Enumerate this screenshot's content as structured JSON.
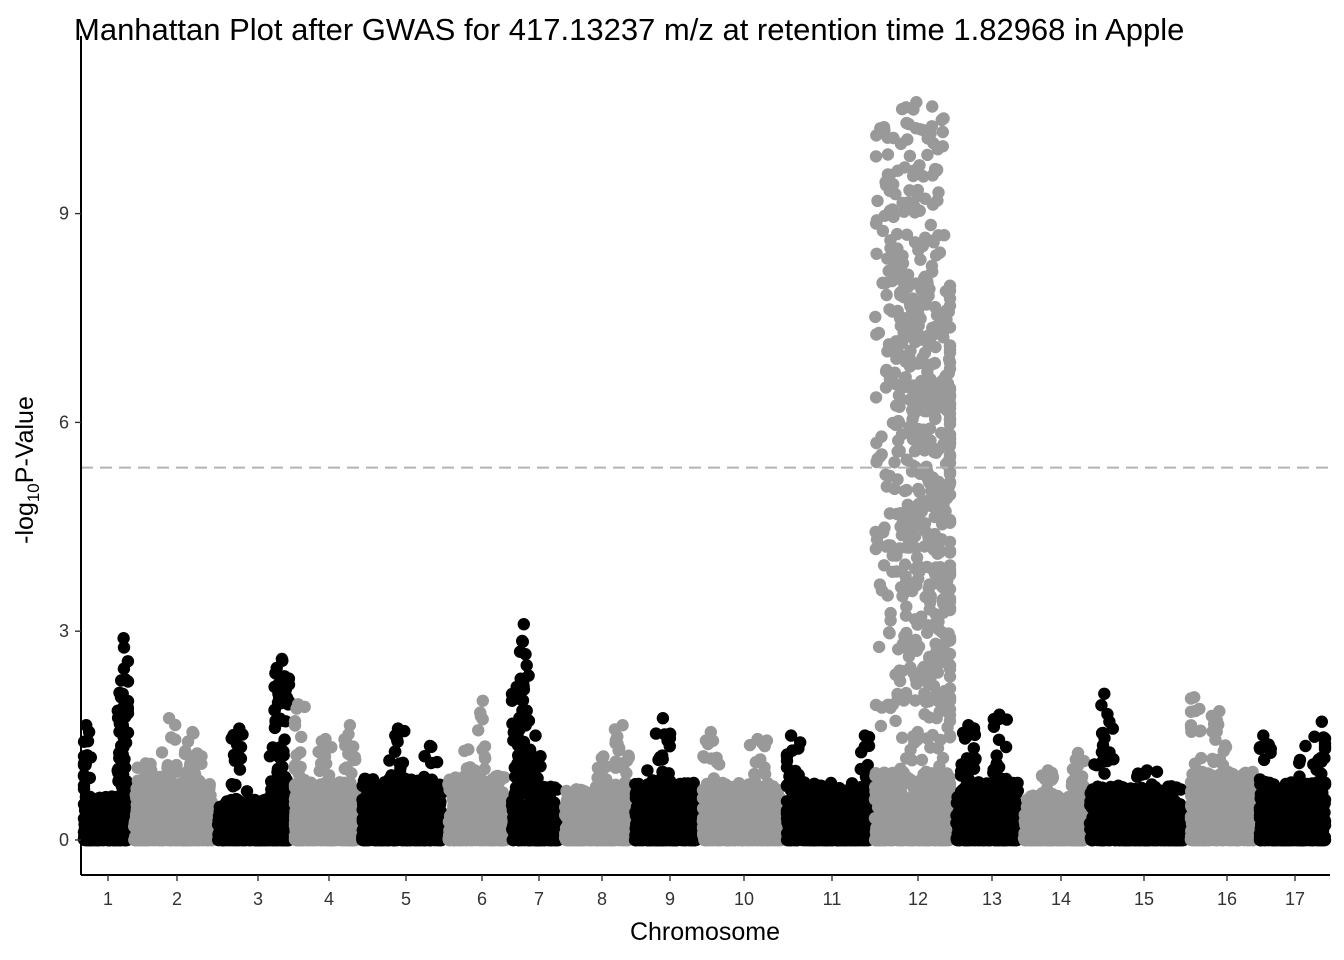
{
  "chart_data": {
    "type": "scatter",
    "subtype": "manhattan",
    "title": "Manhattan Plot after GWAS for 417.13237 m/z at retention time 1.82968 in Apple",
    "xlabel": "Chromosome",
    "ylabel": {
      "prefix": "-log",
      "subscript": "10",
      "suffix": "P-Value"
    },
    "ylim": [
      -0.45,
      10.95
    ],
    "y_ticks": [
      "0",
      "3",
      "6",
      "9"
    ],
    "significance_threshold": 5.35,
    "threshold_style": "dashed grey",
    "grid": false,
    "legend": "none",
    "colors": {
      "odd_chromosomes": "#000000",
      "even_chromosomes": "#999999",
      "threshold": "#b3b3b3"
    },
    "chromosomes": [
      {
        "label": "1",
        "color": "#000000",
        "peaks": [
          {
            "pos": 0.9,
            "max": 2.9
          },
          {
            "pos": 0.88,
            "max": 2.1
          },
          {
            "pos": 0.05,
            "max": 1.65
          }
        ],
        "base": 0.65
      },
      {
        "label": "2",
        "color": "#999999",
        "peaks": [
          {
            "pos": 0.45,
            "max": 1.75
          },
          {
            "pos": 0.75,
            "max": 1.55
          },
          {
            "pos": 0.15,
            "max": 1.1
          }
        ],
        "base": 0.9
      },
      {
        "label": "3",
        "color": "#000000",
        "peaks": [
          {
            "pos": 0.3,
            "max": 1.6
          },
          {
            "pos": 0.9,
            "max": 2.6
          },
          {
            "pos": 0.85,
            "max": 2.1
          }
        ],
        "base": 0.6
      },
      {
        "label": "4",
        "color": "#999999",
        "peaks": [
          {
            "pos": 0.05,
            "max": 1.95
          },
          {
            "pos": 0.9,
            "max": 1.65
          },
          {
            "pos": 0.5,
            "max": 1.45
          }
        ],
        "base": 0.85
      },
      {
        "label": "5",
        "color": "#000000",
        "peaks": [
          {
            "pos": 0.45,
            "max": 1.6
          },
          {
            "pos": 0.85,
            "max": 1.35
          }
        ],
        "base": 0.9
      },
      {
        "label": "6",
        "color": "#999999",
        "peaks": [
          {
            "pos": 0.6,
            "max": 2.0
          },
          {
            "pos": 0.35,
            "max": 1.3
          }
        ],
        "base": 0.95
      },
      {
        "label": "7",
        "color": "#000000",
        "peaks": [
          {
            "pos": 0.25,
            "max": 3.1
          },
          {
            "pos": 0.1,
            "max": 2.2
          },
          {
            "pos": 0.5,
            "max": 1.5
          }
        ],
        "base": 0.8
      },
      {
        "label": "8",
        "color": "#999999",
        "peaks": [
          {
            "pos": 0.9,
            "max": 1.65
          },
          {
            "pos": 0.6,
            "max": 1.2
          }
        ],
        "base": 0.75
      },
      {
        "label": "9",
        "color": "#000000",
        "peaks": [
          {
            "pos": 0.45,
            "max": 1.75
          },
          {
            "pos": 0.2,
            "max": 1.0
          }
        ],
        "base": 0.85
      },
      {
        "label": "10",
        "color": "#999999",
        "peaks": [
          {
            "pos": 0.1,
            "max": 1.55
          },
          {
            "pos": 0.7,
            "max": 1.45
          }
        ],
        "base": 0.85
      },
      {
        "label": "11",
        "color": "#000000",
        "peaks": [
          {
            "pos": 0.05,
            "max": 1.5
          },
          {
            "pos": 0.95,
            "max": 1.5
          }
        ],
        "base": 0.85
      },
      {
        "label": "12",
        "color": "#999999",
        "peaks": [
          {
            "pos": 0.55,
            "max": 10.6
          },
          {
            "pos": 0.42,
            "max": 10.3
          },
          {
            "pos": 0.7,
            "max": 8.0
          },
          {
            "pos": 0.9,
            "max": 6.6
          }
        ],
        "base": 1.0
      },
      {
        "label": "13",
        "color": "#000000",
        "peaks": [
          {
            "pos": 0.7,
            "max": 1.8
          },
          {
            "pos": 0.2,
            "max": 1.65
          }
        ],
        "base": 0.85
      },
      {
        "label": "14",
        "color": "#999999",
        "peaks": [
          {
            "pos": 0.9,
            "max": 1.25
          },
          {
            "pos": 0.4,
            "max": 1.0
          }
        ],
        "base": 0.7
      },
      {
        "label": "15",
        "color": "#000000",
        "peaks": [
          {
            "pos": 0.15,
            "max": 2.1
          },
          {
            "pos": 0.6,
            "max": 1.0
          }
        ],
        "base": 0.8
      },
      {
        "label": "16",
        "color": "#999999",
        "peaks": [
          {
            "pos": 0.05,
            "max": 2.05
          },
          {
            "pos": 0.45,
            "max": 1.85
          }
        ],
        "base": 1.0
      },
      {
        "label": "17",
        "color": "#000000",
        "peaks": [
          {
            "pos": 0.05,
            "max": 1.5
          },
          {
            "pos": 0.95,
            "max": 1.7
          },
          {
            "pos": 0.7,
            "max": 1.35
          }
        ],
        "base": 0.85
      }
    ]
  }
}
